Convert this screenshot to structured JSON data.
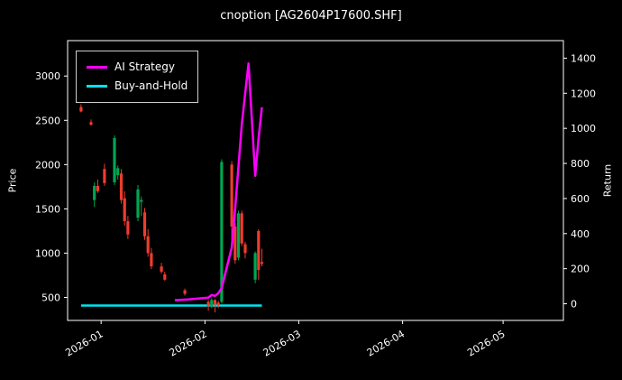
{
  "title": "cnoption [AG2604P17600.SHF]",
  "axes": {
    "left_label": "Price",
    "right_label": "Return",
    "x_ticks": [
      {
        "date": "2026-01-01",
        "label": "2026-01"
      },
      {
        "date": "2026-02-01",
        "label": "2026-02"
      },
      {
        "date": "2026-03-01",
        "label": "2026-03"
      },
      {
        "date": "2026-04-01",
        "label": "2026-04"
      },
      {
        "date": "2026-05-01",
        "label": "2026-05"
      }
    ],
    "left_ticks": [
      500,
      1000,
      1500,
      2000,
      2500,
      3000
    ],
    "right_ticks": [
      0,
      200,
      400,
      600,
      800,
      1000,
      1200,
      1400
    ],
    "x_domain": [
      "2025-12-22",
      "2026-05-19"
    ],
    "price_range": [
      240,
      3400
    ],
    "return_range": [
      -95,
      1500
    ]
  },
  "legend": [
    {
      "label": "AI Strategy",
      "color": "#ff00ff"
    },
    {
      "label": "Buy-and-Hold",
      "color": "#00e5ee"
    }
  ],
  "colors": {
    "background": "#000000",
    "text": "#ffffff",
    "candle_up": "#00a651",
    "candle_down": "#ef3b2d",
    "ai_strategy": "#ff00ff",
    "buy_and_hold": "#00e5ee"
  },
  "chart_data": {
    "type": "candlestick+line",
    "title": "cnoption [AG2604P17600.SHF]",
    "ylabel_left": "Price",
    "ylabel_right": "Return",
    "legend_position": "upper-left",
    "grid": false,
    "candles": [
      [
        "2025-12-26",
        2650,
        2680,
        2590,
        2600
      ],
      [
        "2025-12-29",
        2480,
        2510,
        2440,
        2450
      ],
      [
        "2025-12-30",
        1600,
        1800,
        1520,
        1760
      ],
      [
        "2025-12-31",
        1760,
        1830,
        1680,
        1700
      ],
      [
        "2026-01-02",
        1950,
        2010,
        1760,
        1790
      ],
      [
        "2026-01-05",
        1800,
        2330,
        1770,
        2300
      ],
      [
        "2026-01-06",
        1880,
        1990,
        1830,
        1960
      ],
      [
        "2026-01-07",
        1900,
        1950,
        1560,
        1600
      ],
      [
        "2026-01-08",
        1620,
        1700,
        1310,
        1360
      ],
      [
        "2026-01-09",
        1360,
        1420,
        1160,
        1210
      ],
      [
        "2026-01-12",
        1400,
        1770,
        1360,
        1720
      ],
      [
        "2026-01-13",
        1580,
        1640,
        1420,
        1600
      ],
      [
        "2026-01-14",
        1460,
        1510,
        1150,
        1190
      ],
      [
        "2026-01-15",
        1190,
        1270,
        960,
        1000
      ],
      [
        "2026-01-16",
        1000,
        1060,
        820,
        850
      ],
      [
        "2026-01-19",
        850,
        890,
        770,
        790
      ],
      [
        "2026-01-20",
        760,
        790,
        690,
        700
      ],
      [
        "2026-01-26",
        580,
        600,
        520,
        540
      ],
      [
        "2026-02-02",
        450,
        470,
        350,
        400
      ],
      [
        "2026-02-03",
        400,
        490,
        380,
        470
      ],
      [
        "2026-02-04",
        470,
        480,
        330,
        420
      ],
      [
        "2026-02-05",
        440,
        460,
        380,
        410
      ],
      [
        "2026-02-06",
        450,
        2060,
        430,
        2030
      ],
      [
        "2026-02-09",
        2000,
        2040,
        1120,
        1300
      ],
      [
        "2026-02-10",
        1300,
        1340,
        880,
        920
      ],
      [
        "2026-02-11",
        950,
        1480,
        920,
        1450
      ],
      [
        "2026-02-12",
        1450,
        1480,
        1080,
        1110
      ],
      [
        "2026-02-13",
        1100,
        1130,
        940,
        1000
      ],
      [
        "2026-02-16",
        700,
        1020,
        660,
        1000
      ],
      [
        "2026-02-17",
        1250,
        1270,
        700,
        810
      ],
      [
        "2026-02-18",
        900,
        1050,
        850,
        880
      ]
    ],
    "series": [
      {
        "name": "AI Strategy",
        "axis": "right",
        "color": "#ff00ff",
        "points": [
          [
            "2026-01-23",
            20
          ],
          [
            "2026-01-27",
            25
          ],
          [
            "2026-02-02",
            35
          ],
          [
            "2026-02-03",
            50
          ],
          [
            "2026-02-04",
            45
          ],
          [
            "2026-02-05",
            60
          ],
          [
            "2026-02-06",
            90
          ],
          [
            "2026-02-09",
            320
          ],
          [
            "2026-02-10",
            540
          ],
          [
            "2026-02-11",
            780
          ],
          [
            "2026-02-12",
            1020
          ],
          [
            "2026-02-13",
            1200
          ],
          [
            "2026-02-14",
            1370
          ],
          [
            "2026-02-16",
            730
          ],
          [
            "2026-02-17",
            940
          ],
          [
            "2026-02-18",
            1120
          ]
        ]
      },
      {
        "name": "Buy-and-Hold",
        "axis": "right",
        "color": "#00e5ee",
        "points": [
          [
            "2025-12-26",
            -10
          ],
          [
            "2026-02-18",
            -10
          ]
        ]
      }
    ]
  }
}
